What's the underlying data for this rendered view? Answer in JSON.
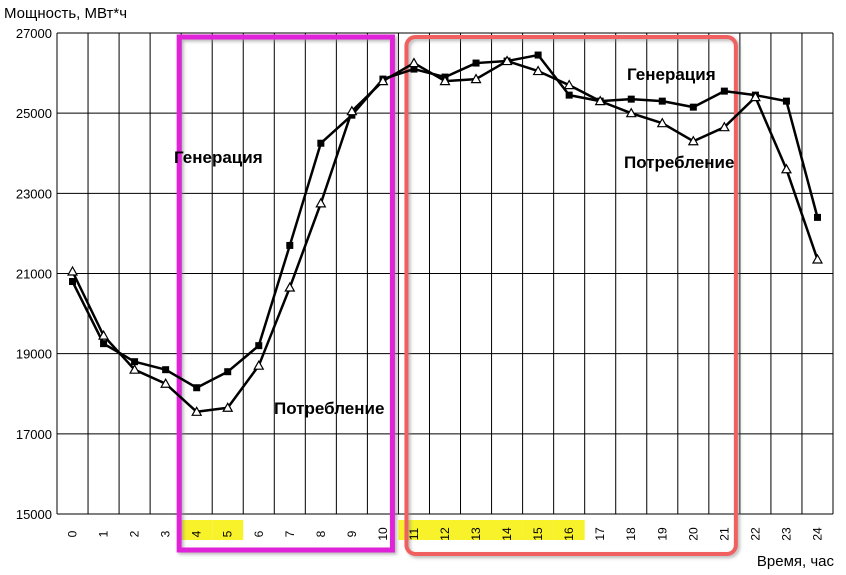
{
  "chart_data": {
    "type": "line",
    "title": "",
    "ylabel": "Мощность, МВт*ч",
    "xlabel": "Время, час",
    "ylim": [
      15000,
      27000
    ],
    "yticks": [
      "15000",
      "17000",
      "19000",
      "21000",
      "23000",
      "25000",
      "27000"
    ],
    "categories": [
      "0",
      "1",
      "2",
      "3",
      "4",
      "5",
      "6",
      "7",
      "8",
      "9",
      "10",
      "11",
      "12",
      "13",
      "14",
      "15",
      "16",
      "17",
      "18",
      "19",
      "20",
      "21",
      "22",
      "23",
      "24"
    ],
    "grid": true,
    "highlighted_hours": [
      "4",
      "5",
      "11",
      "12",
      "13",
      "14",
      "15",
      "16"
    ],
    "series": [
      {
        "name": "Генерация",
        "marker": "square",
        "values": [
          20800,
          19250,
          18800,
          18600,
          18150,
          18550,
          19200,
          21700,
          24250,
          24950,
          25850,
          26100,
          25900,
          26250,
          26300,
          26450,
          25450,
          25300,
          25350,
          25300,
          25150,
          25550,
          25450,
          25300,
          22400
        ]
      },
      {
        "name": "Потребление",
        "marker": "triangle",
        "values": [
          21050,
          19450,
          18600,
          18250,
          17550,
          17650,
          18700,
          20650,
          22750,
          25050,
          25800,
          26250,
          25800,
          25850,
          26300,
          26050,
          25700,
          25300,
          25000,
          24750,
          24300,
          24650,
          25400,
          23600,
          21350
        ]
      }
    ],
    "annotations": {
      "left_box_generation": "Генерация",
      "left_box_consumption": "Потребление",
      "right_box_generation": "Генерация",
      "right_box_consumption": "Потребление"
    },
    "colors": {
      "line": "#000000",
      "left_box": "#e020d8",
      "right_box": "#f06060",
      "tick_highlight": "#f8f22a",
      "grid": "#000000"
    }
  }
}
